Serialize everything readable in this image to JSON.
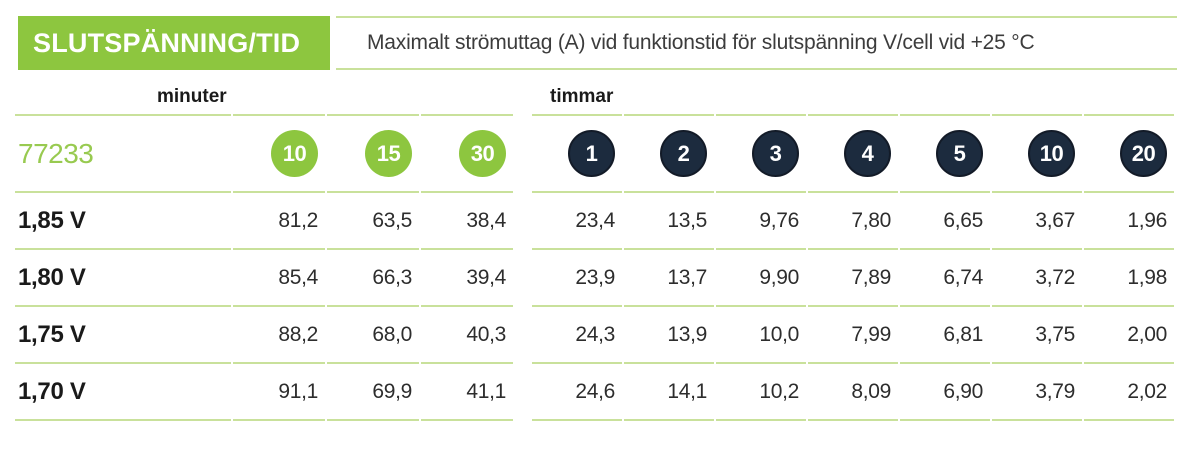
{
  "header": {
    "title": "SLUTSPÄNNING/TID",
    "subtitle": "Maximalt strömuttag (A) vid funktionstid för slutspänning V/cell vid +25 °C"
  },
  "product_code": "77233",
  "sections": {
    "minutes": {
      "label": "minuter",
      "badges": [
        "10",
        "15",
        "30"
      ]
    },
    "hours": {
      "label": "timmar",
      "badges": [
        "1",
        "2",
        "3",
        "4",
        "5",
        "10",
        "20"
      ]
    }
  },
  "rows": [
    {
      "label": "1,85 V",
      "minutes": [
        "81,2",
        "63,5",
        "38,4"
      ],
      "hours": [
        "23,4",
        "13,5",
        "9,76",
        "7,80",
        "6,65",
        "3,67",
        "1,96"
      ]
    },
    {
      "label": "1,80 V",
      "minutes": [
        "85,4",
        "66,3",
        "39,4"
      ],
      "hours": [
        "23,9",
        "13,7",
        "9,90",
        "7,89",
        "6,74",
        "3,72",
        "1,98"
      ]
    },
    {
      "label": "1,75 V",
      "minutes": [
        "88,2",
        "68,0",
        "40,3"
      ],
      "hours": [
        "24,3",
        "13,9",
        "10,0",
        "7,99",
        "6,81",
        "3,75",
        "2,00"
      ]
    },
    {
      "label": "1,70 V",
      "minutes": [
        "91,1",
        "69,9",
        "41,1"
      ],
      "hours": [
        "24,6",
        "14,1",
        "10,2",
        "8,09",
        "6,90",
        "3,79",
        "2,02"
      ]
    }
  ],
  "colors": {
    "green": "#8DC63F",
    "navy": "#1C2B3E",
    "line_green": "#C9E19B",
    "product_code_green": "#98CA50"
  }
}
